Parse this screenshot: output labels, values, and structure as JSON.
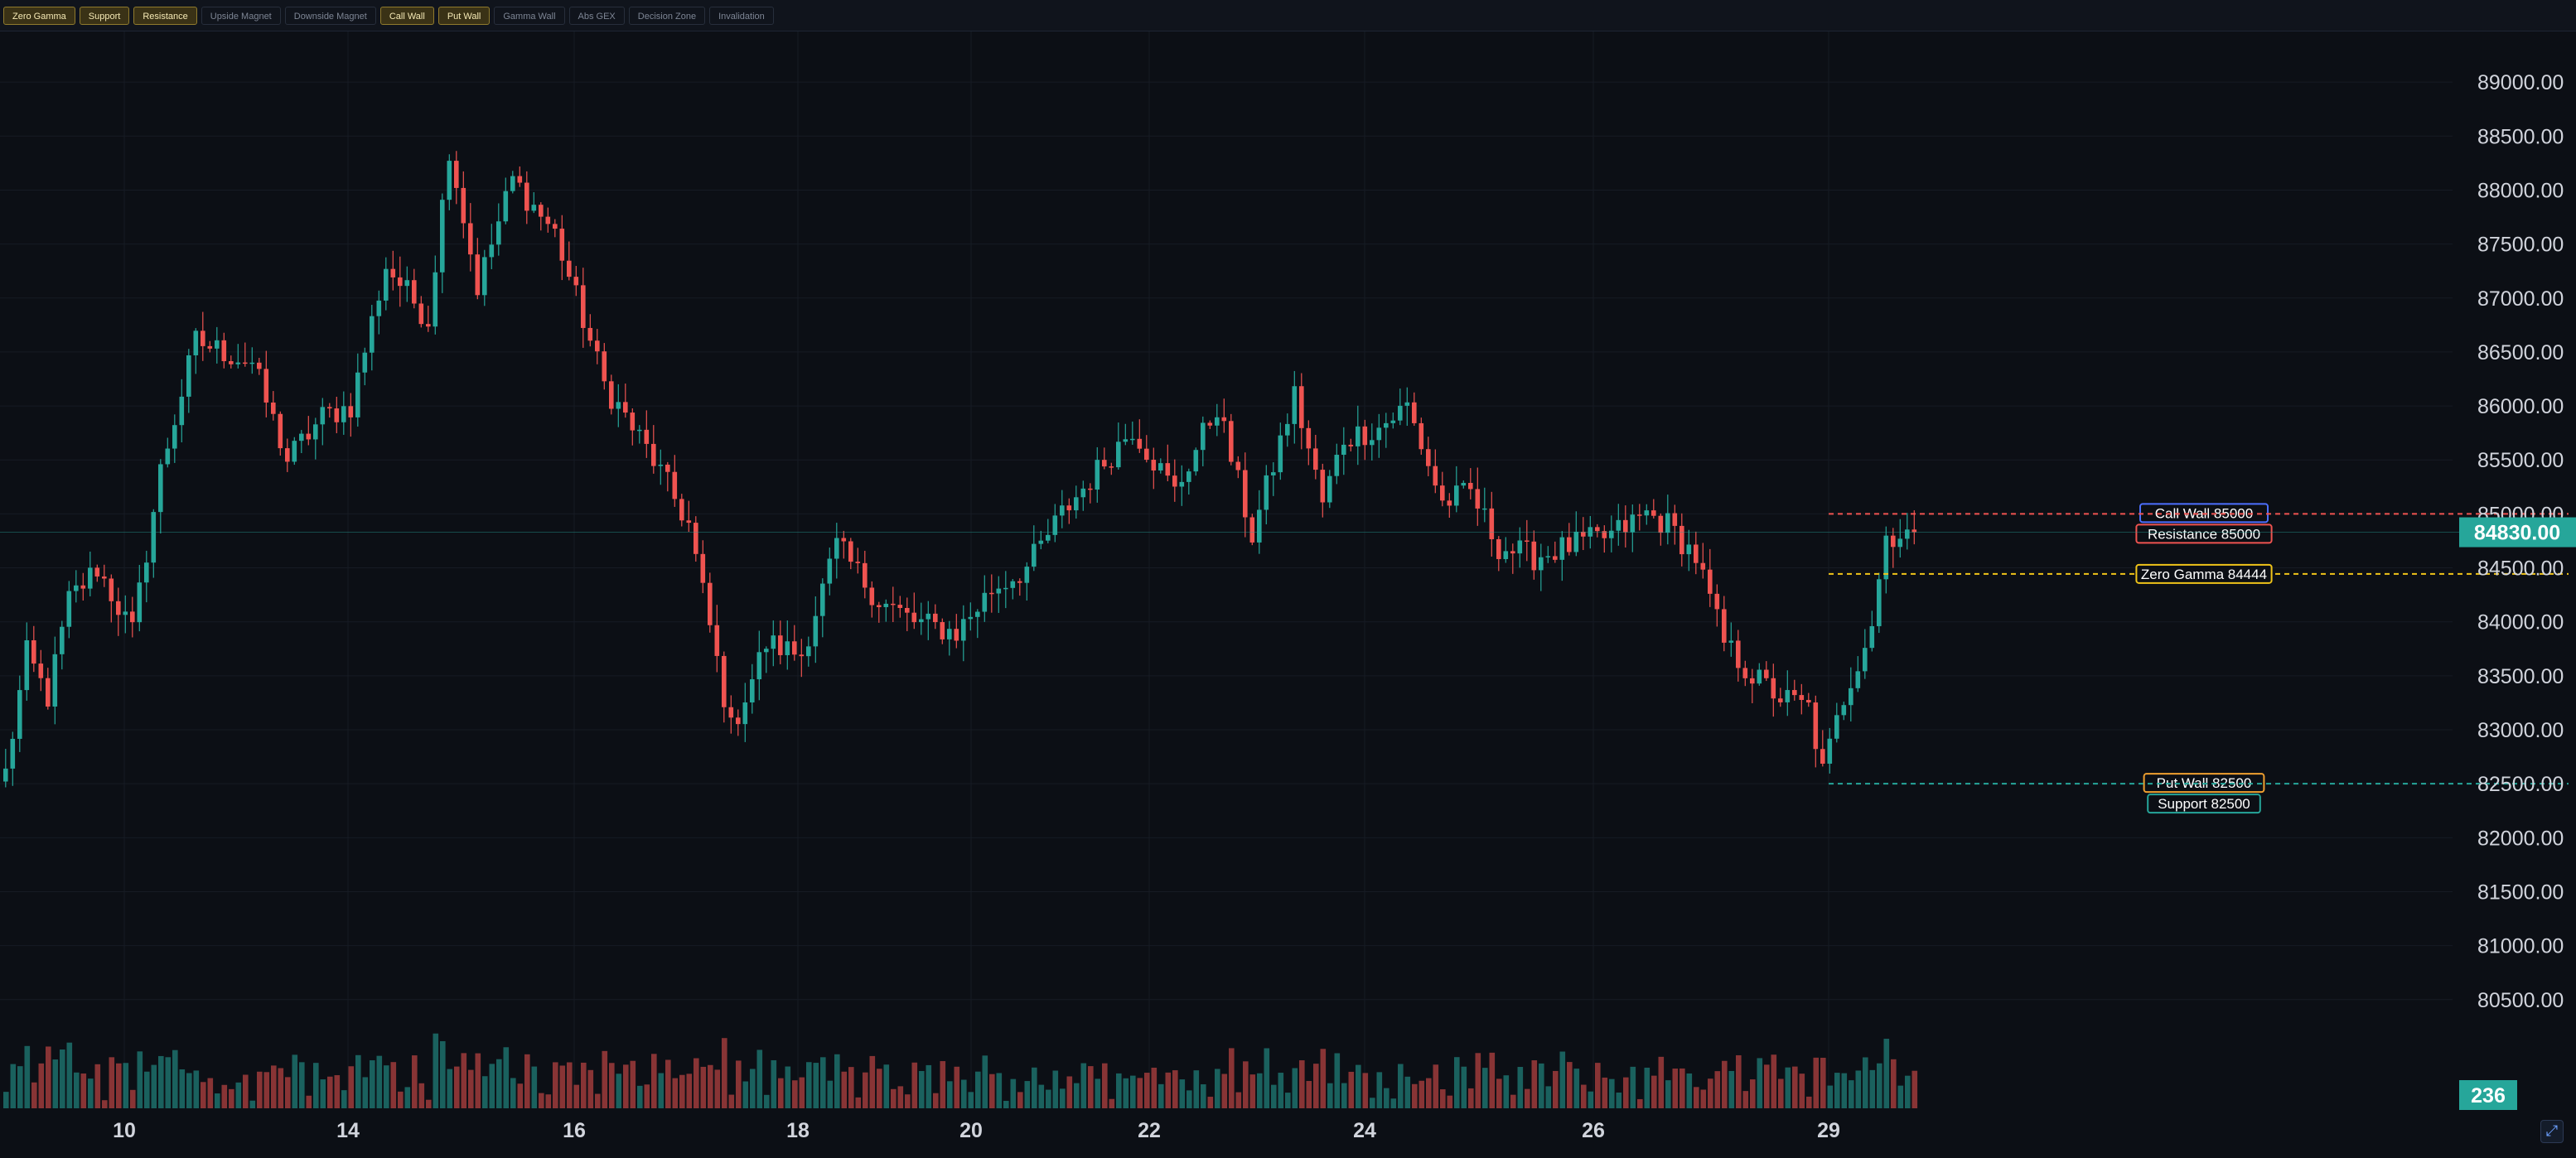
{
  "toolbar": {
    "buttons": [
      {
        "label": "Zero Gamma",
        "active": true
      },
      {
        "label": "Support",
        "active": true
      },
      {
        "label": "Resistance",
        "active": true
      },
      {
        "label": "Upside Magnet",
        "active": false
      },
      {
        "label": "Downside Magnet",
        "active": false
      },
      {
        "label": "Call Wall",
        "active": true
      },
      {
        "label": "Put Wall",
        "active": true
      },
      {
        "label": "Gamma Wall",
        "active": false
      },
      {
        "label": "Abs GEX",
        "active": false
      },
      {
        "label": "Decision Zone",
        "active": false
      },
      {
        "label": "Invalidation",
        "active": false
      }
    ]
  },
  "colors": {
    "up": "#26a69a",
    "down": "#ef5350",
    "background": "#0c0f15",
    "grid": "#161b24",
    "call_wall": "#4c6fff",
    "resistance": "#ef5350",
    "zero_gamma": "#f0c419",
    "put_wall": "#f0a030",
    "support": "#26a69a"
  },
  "chart_data": {
    "type": "candlestick",
    "ylim": [
      79800,
      89500
    ],
    "y_ticks": [
      "89000.00",
      "88500.00",
      "88000.00",
      "87500.00",
      "87000.00",
      "86500.00",
      "86000.00",
      "85500.00",
      "85000.00",
      "84500.00",
      "84000.00",
      "83500.00",
      "83000.00",
      "82500.00",
      "82000.00",
      "81500.00",
      "81000.00",
      "80500.00"
    ],
    "x_ticks": [
      "10",
      "14",
      "16",
      "18",
      "20",
      "22",
      "24",
      "26",
      "29"
    ],
    "last_price": {
      "label": "84830.00",
      "value": 84830
    },
    "volume_label": "236",
    "levels": [
      {
        "name": "Call Wall",
        "label": "Call Wall 85000",
        "value": 85000,
        "line": "none",
        "color": "#4c6fff"
      },
      {
        "name": "Resistance",
        "label": "Resistance 85000",
        "value": 85000,
        "line": "dashed",
        "color": "#ef5350"
      },
      {
        "name": "Zero Gamma",
        "label": "Zero Gamma 84444",
        "value": 84444,
        "line": "dashed",
        "color": "#f0c419"
      },
      {
        "name": "Put Wall",
        "label": "Put Wall 82500",
        "value": 82500,
        "line": "none",
        "color": "#f0a030"
      },
      {
        "name": "Support",
        "label": "Support 82500",
        "value": 82500,
        "line": "dashed",
        "color": "#26a69a"
      }
    ],
    "anchors": [
      [
        0,
        82600
      ],
      [
        3,
        83700
      ],
      [
        6,
        83300
      ],
      [
        9,
        84200
      ],
      [
        13,
        84500
      ],
      [
        18,
        83900
      ],
      [
        22,
        85400
      ],
      [
        27,
        86600
      ],
      [
        35,
        86400
      ],
      [
        40,
        85500
      ],
      [
        45,
        85900
      ],
      [
        49,
        86000
      ],
      [
        54,
        87300
      ],
      [
        60,
        86800
      ],
      [
        63,
        88400
      ],
      [
        67,
        87100
      ],
      [
        72,
        88100
      ],
      [
        78,
        87600
      ],
      [
        85,
        86200
      ],
      [
        92,
        85500
      ],
      [
        97,
        84900
      ],
      [
        103,
        83000
      ],
      [
        108,
        83800
      ],
      [
        113,
        83700
      ],
      [
        118,
        84700
      ],
      [
        124,
        84200
      ],
      [
        129,
        84000
      ],
      [
        135,
        83900
      ],
      [
        140,
        84300
      ],
      [
        145,
        84500
      ],
      [
        150,
        85000
      ],
      [
        155,
        85400
      ],
      [
        160,
        85800
      ],
      [
        166,
        85200
      ],
      [
        172,
        86000
      ],
      [
        177,
        84800
      ],
      [
        183,
        86100
      ],
      [
        187,
        85100
      ],
      [
        190,
        85700
      ],
      [
        195,
        85800
      ],
      [
        199,
        86000
      ],
      [
        204,
        85100
      ],
      [
        208,
        85200
      ],
      [
        212,
        84700
      ],
      [
        217,
        84600
      ],
      [
        222,
        84700
      ],
      [
        228,
        84800
      ],
      [
        233,
        85000
      ],
      [
        236,
        84900
      ],
      [
        240,
        84600
      ],
      [
        244,
        83800
      ],
      [
        248,
        83500
      ],
      [
        252,
        83300
      ],
      [
        256,
        83200
      ],
      [
        258,
        82600
      ],
      [
        261,
        83300
      ],
      [
        265,
        84000
      ],
      [
        267,
        84800
      ],
      [
        271,
        84830
      ]
    ]
  }
}
